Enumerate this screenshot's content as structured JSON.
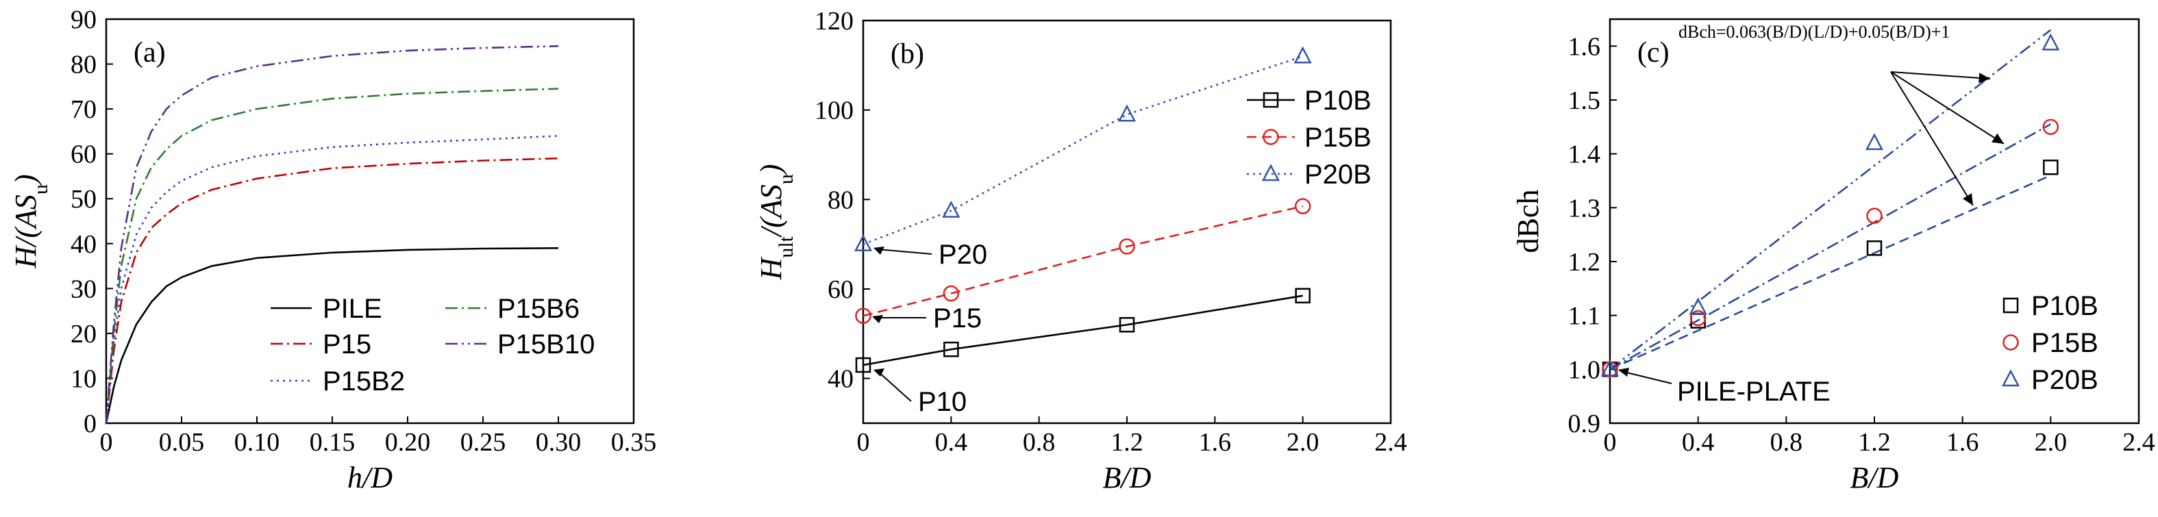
{
  "chart_data": [
    {
      "type": "line",
      "panel_label": "(a)",
      "xlabel": "h/D",
      "ylabel": "H/(AS_u)",
      "xlim": [
        0,
        0.35
      ],
      "ylim": [
        0,
        90
      ],
      "xticks": [
        "0",
        "0.05",
        "0.10",
        "0.15",
        "0.20",
        "0.25",
        "0.30",
        "0.35"
      ],
      "yticks": [
        "0",
        "10",
        "20",
        "30",
        "40",
        "50",
        "60",
        "70",
        "80",
        "90"
      ],
      "legend": {
        "columns": 2,
        "entries": [
          "PILE",
          "P15B6",
          "P15",
          "P15B10",
          "P15B2"
        ],
        "placement": "lower right"
      },
      "series": [
        {
          "name": "PILE",
          "color": "#000000",
          "dash": "solid",
          "x": [
            0,
            0.005,
            0.01,
            0.02,
            0.03,
            0.04,
            0.05,
            0.07,
            0.1,
            0.15,
            0.2,
            0.25,
            0.3
          ],
          "y": [
            0,
            8,
            14,
            22,
            27,
            30.5,
            32.5,
            35,
            36.8,
            38,
            38.6,
            38.9,
            39
          ]
        },
        {
          "name": "P15",
          "color": "#c00000",
          "dash": "dashdot",
          "x": [
            0,
            0.005,
            0.01,
            0.02,
            0.03,
            0.04,
            0.05,
            0.07,
            0.1,
            0.15,
            0.2,
            0.25,
            0.3
          ],
          "y": [
            0,
            16,
            27,
            38,
            43.5,
            46.5,
            49,
            52,
            54.5,
            56.8,
            57.8,
            58.5,
            59
          ]
        },
        {
          "name": "P15B2",
          "color": "#3344bb",
          "dash": "dotted",
          "x": [
            0,
            0.005,
            0.01,
            0.02,
            0.03,
            0.04,
            0.05,
            0.07,
            0.1,
            0.15,
            0.2,
            0.25,
            0.3
          ],
          "y": [
            0,
            18,
            30,
            42,
            48,
            51.5,
            54,
            57,
            59.5,
            61.5,
            62.5,
            63.2,
            64
          ]
        },
        {
          "name": "P15B6",
          "color": "#2e7d32",
          "dash": "dashdot",
          "x": [
            0,
            0.005,
            0.01,
            0.02,
            0.03,
            0.04,
            0.05,
            0.07,
            0.1,
            0.15,
            0.2,
            0.25,
            0.3
          ],
          "y": [
            0,
            20,
            35,
            50,
            57,
            61,
            64,
            67.5,
            70,
            72.3,
            73.4,
            74,
            74.5
          ]
        },
        {
          "name": "P15B10",
          "color": "#5a2d8c",
          "dash": "dashdotdot",
          "x": [
            0,
            0.005,
            0.01,
            0.02,
            0.03,
            0.04,
            0.05,
            0.07,
            0.1,
            0.15,
            0.2,
            0.25,
            0.3
          ],
          "y": [
            0,
            22,
            39,
            57,
            65,
            70,
            73,
            77,
            79.5,
            81.8,
            83,
            83.6,
            84
          ]
        }
      ]
    },
    {
      "type": "line",
      "panel_label": "(b)",
      "xlabel": "B/D",
      "ylabel": "H_ult/(AS_u)",
      "xlim": [
        0,
        2.4
      ],
      "ylim": [
        30,
        120
      ],
      "xticks": [
        "0",
        "0.4",
        "0.8",
        "1.2",
        "1.6",
        "2.0",
        "2.4"
      ],
      "yticks": [
        "40",
        "60",
        "80",
        "100",
        "120"
      ],
      "legend": {
        "columns": 1,
        "entries": [
          "P10B",
          "P15B",
          "P20B"
        ],
        "placement": "upper right"
      },
      "series": [
        {
          "name": "P10B",
          "color": "#000000",
          "marker": "square",
          "dash": "solid",
          "x": [
            0,
            0.4,
            1.2,
            2.0
          ],
          "y": [
            43,
            46.5,
            52,
            58.5
          ]
        },
        {
          "name": "P15B",
          "color": "#e02020",
          "marker": "circle",
          "dash": "dashed",
          "x": [
            0,
            0.4,
            1.2,
            2.0
          ],
          "y": [
            54,
            59,
            69.5,
            78.5
          ]
        },
        {
          "name": "P20B",
          "color": "#3355aa",
          "marker": "triangle",
          "dash": "dotted",
          "x": [
            0,
            0.4,
            1.2,
            2.0
          ],
          "y": [
            70,
            77.5,
            99,
            112
          ]
        }
      ],
      "annotations": [
        {
          "text": "P20",
          "x": 0,
          "y": 70
        },
        {
          "text": "P15",
          "x": 0,
          "y": 54
        },
        {
          "text": "P10",
          "x": 0,
          "y": 43
        }
      ]
    },
    {
      "type": "line",
      "panel_label": "(c)",
      "xlabel": "B/D",
      "ylabel": "dBch",
      "xlim": [
        0,
        2.4
      ],
      "ylim": [
        0.9,
        1.65
      ],
      "xticks": [
        "0",
        "0.4",
        "0.8",
        "1.2",
        "1.6",
        "2.0",
        "2.4"
      ],
      "yticks": [
        "0.9",
        "1.0",
        "1.1",
        "1.2",
        "1.3",
        "1.4",
        "1.5",
        "1.6"
      ],
      "legend": {
        "columns": 1,
        "entries": [
          "P10B",
          "P15B",
          "P20B"
        ],
        "placement": "lower right"
      },
      "formula": "dBch=0.063(B/D)(L/D)+0.05(B/D)+1",
      "annotation": "PILE-PLATE",
      "series": [
        {
          "name": "P10B",
          "color": "#000000",
          "marker": "square",
          "x": [
            0,
            0.4,
            1.2,
            2.0
          ],
          "y": [
            1.0,
            1.09,
            1.225,
            1.375
          ]
        },
        {
          "name": "P15B",
          "color": "#e02020",
          "marker": "circle",
          "x": [
            0,
            0.4,
            1.2,
            2.0
          ],
          "y": [
            1.0,
            1.095,
            1.285,
            1.45
          ]
        },
        {
          "name": "P20B",
          "color": "#3355aa",
          "marker": "triangle",
          "x": [
            0,
            0.4,
            1.2,
            2.0
          ],
          "y": [
            1.0,
            1.115,
            1.42,
            1.605
          ]
        }
      ],
      "fit_lines": [
        {
          "x": [
            0,
            2.0
          ],
          "y": [
            1.0,
            1.36
          ],
          "color": "#2a4a9a",
          "dash": "dashed"
        },
        {
          "x": [
            0,
            2.0
          ],
          "y": [
            1.0,
            1.455
          ],
          "color": "#2a4a9a",
          "dash": "dashdot"
        },
        {
          "x": [
            0,
            2.0
          ],
          "y": [
            1.0,
            1.63
          ],
          "color": "#2a4a9a",
          "dash": "dashdotdot"
        }
      ]
    }
  ]
}
